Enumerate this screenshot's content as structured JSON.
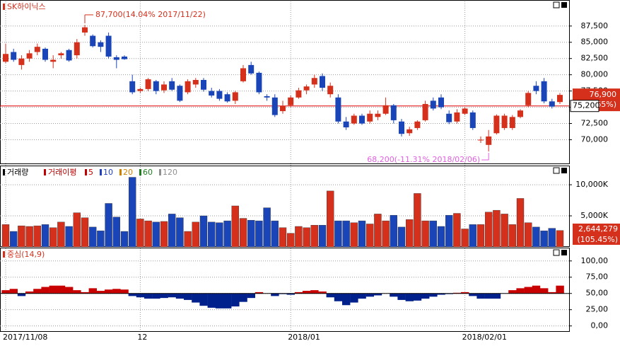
{
  "chart_data": [
    {
      "type": "candlestick",
      "title": "SK하이닉스",
      "categories": [
        "2017/11/08",
        null,
        null,
        null,
        null,
        null,
        null,
        null,
        null,
        null,
        null,
        null,
        null,
        null,
        null,
        null,
        null,
        "12",
        null,
        null,
        null,
        null,
        null,
        null,
        null,
        null,
        null,
        null,
        null,
        null,
        null,
        null,
        null,
        null,
        null,
        null,
        "2018/01",
        null,
        null,
        null,
        null,
        null,
        null,
        null,
        null,
        null,
        null,
        null,
        null,
        null,
        null,
        null,
        null,
        null,
        null,
        null,
        null,
        null,
        "2018/02/01",
        null,
        null,
        null,
        null,
        null,
        null,
        null,
        null,
        null,
        null,
        null,
        null
      ],
      "open": [
        82000,
        83500,
        81500,
        82500,
        83500,
        84000,
        82000,
        83000,
        83800,
        83000,
        86500,
        86000,
        85000,
        86000,
        82700,
        82800,
        79000,
        77500,
        77800,
        79000,
        77600,
        79000,
        78300,
        77300,
        78500,
        79200,
        77500,
        77500,
        77000,
        76000,
        79000,
        81500,
        80300,
        76700,
        76500,
        74400,
        75300,
        76500,
        77600,
        78500,
        79800,
        77000,
        76500,
        72800,
        72500,
        73700,
        72800,
        73500,
        74000,
        75300,
        72800,
        71000,
        71800,
        73000,
        76000,
        76500,
        74000,
        72800,
        74000,
        74200,
        70000,
        69200,
        71000,
        71800,
        71800,
        73500,
        75300,
        78300,
        79000,
        75900,
        75800
      ],
      "high": [
        84800,
        84000,
        83000,
        83800,
        84800,
        84200,
        83000,
        83500,
        84000,
        85500,
        87700,
        86200,
        85300,
        86500,
        83000,
        83000,
        80000,
        78000,
        79500,
        79200,
        79000,
        79500,
        78500,
        79300,
        79500,
        79500,
        78000,
        77800,
        77300,
        77500,
        81500,
        82000,
        80500,
        77000,
        77000,
        76000,
        76800,
        78000,
        78500,
        80000,
        80200,
        78800,
        77000,
        73500,
        74000,
        74000,
        74500,
        74500,
        76500,
        75500,
        73200,
        72000,
        73000,
        76000,
        76500,
        77000,
        74500,
        74700,
        75000,
        74500,
        70500,
        71500,
        73900,
        74000,
        73800,
        74700,
        77500,
        79000,
        79500,
        76300,
        77200
      ],
      "low": [
        81800,
        82000,
        80800,
        82000,
        83000,
        82000,
        81000,
        82500,
        82000,
        82500,
        86000,
        84200,
        83500,
        82500,
        81000,
        82300,
        77000,
        77200,
        77500,
        77000,
        77200,
        77500,
        75800,
        77000,
        78000,
        77400,
        76500,
        76000,
        75700,
        75500,
        78800,
        80000,
        77000,
        76000,
        73500,
        74000,
        75000,
        76300,
        77000,
        78000,
        77500,
        76500,
        72500,
        71500,
        72300,
        72300,
        72500,
        73000,
        73800,
        72500,
        70500,
        70600,
        71500,
        72800,
        74500,
        74700,
        72400,
        72500,
        73800,
        71500,
        69500,
        68200,
        70800,
        71500,
        71500,
        73300,
        75000,
        77000,
        75600,
        74800,
        75500
      ],
      "close": [
        83200,
        82300,
        82500,
        83300,
        84300,
        82300,
        82300,
        83300,
        82200,
        85000,
        87300,
        84400,
        84300,
        82800,
        82300,
        82400,
        77300,
        77800,
        79300,
        77500,
        78500,
        77700,
        76000,
        79000,
        79200,
        77700,
        76800,
        76300,
        75900,
        77300,
        81000,
        80200,
        77300,
        76500,
        73800,
        75200,
        76500,
        77600,
        78200,
        79500,
        78000,
        78300,
        72800,
        71900,
        73700,
        72500,
        74000,
        74000,
        75300,
        73000,
        70900,
        71600,
        72800,
        75500,
        74800,
        75000,
        72700,
        74200,
        74800,
        71800,
        70000,
        70500,
        73700,
        73700,
        73500,
        74500,
        77200,
        77500,
        75900,
        75100,
        76900
      ],
      "up_color": "#d4301c",
      "down_color": "#1a45b8",
      "ylim": [
        67000,
        90200
      ],
      "yticks": [
        {
          "value": 70000,
          "label": "70,000"
        },
        {
          "value": 72500,
          "label": "72,500"
        },
        {
          "value": 75000,
          "label": "75,000"
        },
        {
          "value": 77500,
          "label": "77,500"
        },
        {
          "value": 80000,
          "label": "80,000"
        },
        {
          "value": 82500,
          "label": "82,500"
        },
        {
          "value": 85000,
          "label": "85,000"
        },
        {
          "value": 87500,
          "label": "87,500"
        }
      ],
      "reference_line": {
        "value": 75200,
        "label": "75,200",
        "color": "#e00000"
      },
      "last_label": "76,900",
      "last_change_label": "65%)",
      "annotations": [
        {
          "value": 87700,
          "text": "87,700(14.04% 2017/11/22)",
          "color": "#d4301c"
        },
        {
          "value": 68200,
          "text": "68,200(-11.31% 2018/02/06)",
          "color": "#e060e0"
        }
      ]
    },
    {
      "type": "bar",
      "title": "거래량",
      "subtitle": "거래이평",
      "ma_legend": [
        {
          "name": "5",
          "color": "#c00000"
        },
        {
          "name": "10",
          "color": "#2040c0"
        },
        {
          "name": "20",
          "color": "#d08000"
        },
        {
          "name": "60",
          "color": "#208020"
        },
        {
          "name": "120",
          "color": "#909090"
        }
      ],
      "values": [
        3600,
        2500,
        3400,
        3300,
        3400,
        3600,
        3100,
        4000,
        3300,
        5500,
        4700,
        3200,
        2600,
        7000,
        4800,
        2500,
        11200,
        4500,
        4200,
        4000,
        4100,
        5300,
        4700,
        2500,
        4000,
        5000,
        4000,
        3900,
        4200,
        6600,
        4600,
        4300,
        4200,
        6300,
        4200,
        3100,
        2200,
        3300,
        3100,
        3500,
        3500,
        9000,
        4200,
        4200,
        3900,
        4200,
        3700,
        5300,
        4200,
        5100,
        3200,
        4400,
        8600,
        4200,
        4200,
        3300,
        5100,
        5400,
        2900,
        3600,
        3600,
        5600,
        5900,
        5300,
        3600,
        7800,
        3900,
        3200,
        2600,
        3000,
        2644.279
      ],
      "ylim": [
        0,
        12400
      ],
      "yticks": [
        {
          "value": 5000,
          "label": "5,000K"
        },
        {
          "value": 10000,
          "label": "10,000K"
        }
      ],
      "last_label": "2,644,279",
      "last_ratio_label": "(105.45%)"
    },
    {
      "type": "area",
      "title": "중심(14,9)",
      "values": [
        55,
        57,
        46,
        53,
        57,
        60,
        62,
        62,
        60,
        55,
        52,
        58,
        54,
        56,
        57,
        56,
        46,
        44,
        42,
        42,
        43,
        44,
        42,
        40,
        36,
        31,
        28,
        27,
        27,
        30,
        37,
        43,
        52,
        50,
        46,
        49,
        48,
        52,
        54,
        55,
        53,
        44,
        38,
        32,
        36,
        42,
        45,
        47,
        50,
        45,
        40,
        38,
        39,
        42,
        45,
        48,
        49,
        51,
        52,
        46,
        42,
        42,
        42,
        50,
        55,
        58,
        60,
        62,
        58,
        52,
        62
      ],
      "baseline": 50,
      "above_color": "#c80000",
      "below_color": "#00208c",
      "ylim": [
        -8,
        115
      ],
      "yticks": [
        {
          "value": 0,
          "label": "0,00"
        },
        {
          "value": 25,
          "label": "25,00"
        },
        {
          "value": 50,
          "label": "50,00"
        },
        {
          "value": 75,
          "label": "75,00"
        },
        {
          "value": 100,
          "label": "100,00"
        }
      ]
    }
  ]
}
